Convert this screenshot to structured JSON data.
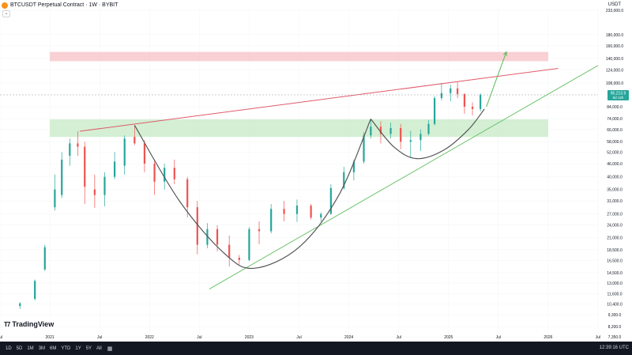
{
  "header": {
    "title": "BTCUSDT Perpetual Contract · 1W · BYBIT",
    "symbol_icon": "bitcoin-icon",
    "currency": "USDT",
    "collapse_label": "⌄"
  },
  "watermark": "TradingView",
  "bottom_bar": {
    "timeframes": [
      "1D",
      "5D",
      "1M",
      "3M",
      "6M",
      "YTD",
      "1Y",
      "5Y",
      "All"
    ],
    "range_icon": "calendar-range-icon",
    "clock": "12:39:16 UTC"
  },
  "colors": {
    "up": "#26a69a",
    "down": "#ef5350",
    "resistance_zone": "#f8c8cc",
    "support_zone": "#cdeccd",
    "resistance_line": "#e05a6a",
    "trend_line": "#6cc36c",
    "arrow": "#57b857",
    "cup_curve": "#555555",
    "price_label": "#26a69a"
  },
  "chart_data": {
    "type": "candlestick",
    "x_axis": {
      "labels": [
        "Jul",
        "2021",
        "Jul",
        "2022",
        "Jul",
        "2023",
        "Jul",
        "2024",
        "Jul",
        "2025",
        "Jul",
        "2026",
        "Jul"
      ],
      "range": [
        "2020-07",
        "2026-07"
      ]
    },
    "y_axis": {
      "scale": "log",
      "labels": [
        "233,000.0",
        "180,000.0",
        "160,000.0",
        "140,000.0",
        "124,000.0",
        "108,000.0",
        "84,000.0",
        "74,000.0",
        "66,000.0",
        "58,000.0",
        "52,000.0",
        "46,000.0",
        "40,000.0",
        "35,000.0",
        "31,000.0",
        "27,000.0",
        "24,000.0",
        "21,000.0",
        "18,500.0",
        "16,500.0",
        "14,500.0",
        "13,000.0",
        "11,600.0",
        "10,400.0",
        "9,300.0",
        "8,200.0",
        "7,350.0"
      ],
      "range": [
        7000,
        235000
      ]
    },
    "last_price": {
      "value": "95,213.9",
      "countdown": "6d 12h",
      "y": 95213.9
    },
    "candles": [
      [
        2020.7,
        10200,
        10600,
        9900,
        10500
      ],
      [
        2020.85,
        11000,
        13500,
        10800,
        13300
      ],
      [
        2020.95,
        15000,
        19500,
        14800,
        19000
      ],
      [
        2021.05,
        29000,
        41000,
        28000,
        35000
      ],
      [
        2021.12,
        33000,
        52000,
        32000,
        48000
      ],
      [
        2021.2,
        50000,
        60000,
        45000,
        57000
      ],
      [
        2021.28,
        57000,
        64800,
        50000,
        55000
      ],
      [
        2021.35,
        55000,
        58000,
        30000,
        36000
      ],
      [
        2021.45,
        35000,
        41000,
        28800,
        33000
      ],
      [
        2021.55,
        33000,
        42000,
        29300,
        40000
      ],
      [
        2021.65,
        40000,
        52000,
        39000,
        47000
      ],
      [
        2021.75,
        45000,
        62000,
        41000,
        60000
      ],
      [
        2021.85,
        61000,
        69000,
        56000,
        57000
      ],
      [
        2021.95,
        57000,
        59000,
        42000,
        46000
      ],
      [
        2022.05,
        46000,
        48000,
        33000,
        38000
      ],
      [
        2022.15,
        38000,
        46000,
        35000,
        44000
      ],
      [
        2022.25,
        44000,
        48000,
        37000,
        39000
      ],
      [
        2022.38,
        39000,
        40000,
        26000,
        29000
      ],
      [
        2022.48,
        29000,
        31000,
        17600,
        19500
      ],
      [
        2022.58,
        19500,
        24500,
        18800,
        23000
      ],
      [
        2022.68,
        23000,
        24000,
        18200,
        19500
      ],
      [
        2022.8,
        19500,
        21500,
        15500,
        17000
      ],
      [
        2022.9,
        17000,
        17500,
        15800,
        16600
      ],
      [
        2023.0,
        16600,
        23500,
        16400,
        23000
      ],
      [
        2023.1,
        23000,
        25000,
        19600,
        22500
      ],
      [
        2023.22,
        22500,
        30000,
        22000,
        28500
      ],
      [
        2023.35,
        28500,
        31000,
        25000,
        27000
      ],
      [
        2023.48,
        27000,
        31500,
        24800,
        29500
      ],
      [
        2023.62,
        29500,
        30000,
        25500,
        26000
      ],
      [
        2023.72,
        26000,
        27500,
        24900,
        27000
      ],
      [
        2023.82,
        27000,
        37000,
        26800,
        35500
      ],
      [
        2023.95,
        35500,
        44500,
        35000,
        42000
      ],
      [
        2024.05,
        42000,
        48000,
        38500,
        47000
      ],
      [
        2024.15,
        47000,
        64000,
        46000,
        62000
      ],
      [
        2024.22,
        62000,
        73800,
        60000,
        68000
      ],
      [
        2024.32,
        68000,
        72000,
        57000,
        63000
      ],
      [
        2024.42,
        63000,
        71000,
        60000,
        67000
      ],
      [
        2024.52,
        67000,
        70000,
        53500,
        58000
      ],
      [
        2024.62,
        58000,
        65000,
        49000,
        59000
      ],
      [
        2024.72,
        59000,
        66000,
        52500,
        63000
      ],
      [
        2024.8,
        63000,
        73000,
        62000,
        70000
      ],
      [
        2024.86,
        70000,
        94000,
        69000,
        92000
      ],
      [
        2024.93,
        92000,
        108000,
        90000,
        97000
      ],
      [
        2025.02,
        97000,
        106000,
        89000,
        102000
      ],
      [
        2025.09,
        102000,
        109000,
        92000,
        96000
      ],
      [
        2025.16,
        96000,
        97000,
        78000,
        84000
      ],
      [
        2025.24,
        84000,
        88000,
        76500,
        82000
      ],
      [
        2025.32,
        82000,
        97000,
        80000,
        95213.9
      ]
    ],
    "zones": [
      {
        "name": "resistance-zone",
        "x": [
          2021.0,
          2026.0
        ],
        "y": [
          136000,
          150000
        ]
      },
      {
        "name": "support-zone",
        "x": [
          2021.0,
          2026.0
        ],
        "y": [
          61000,
          73500
        ]
      }
    ],
    "lines": [
      {
        "name": "resistance-trendline",
        "points": [
          [
            2021.3,
            64800
          ],
          [
            2026.1,
            126000
          ]
        ]
      },
      {
        "name": "support-trendline",
        "points": [
          [
            2022.6,
            12200
          ],
          [
            2026.5,
            130000
          ]
        ]
      }
    ],
    "cup_curves": [
      {
        "name": "cup-curve-large",
        "points": [
          [
            2021.85,
            69000
          ],
          [
            2022.3,
            31000
          ],
          [
            2022.75,
            17800
          ],
          [
            2023.05,
            15200
          ],
          [
            2023.5,
            19000
          ],
          [
            2023.9,
            33000
          ],
          [
            2024.22,
            73800
          ]
        ]
      },
      {
        "name": "cup-curve-small",
        "points": [
          [
            2024.22,
            73800
          ],
          [
            2024.45,
            55000
          ],
          [
            2024.68,
            48500
          ],
          [
            2024.95,
            53000
          ],
          [
            2025.2,
            66000
          ],
          [
            2025.36,
            82000
          ]
        ]
      }
    ],
    "projection_arrow": {
      "from": [
        2025.38,
        84000
      ],
      "to": [
        2025.58,
        150000
      ]
    }
  }
}
